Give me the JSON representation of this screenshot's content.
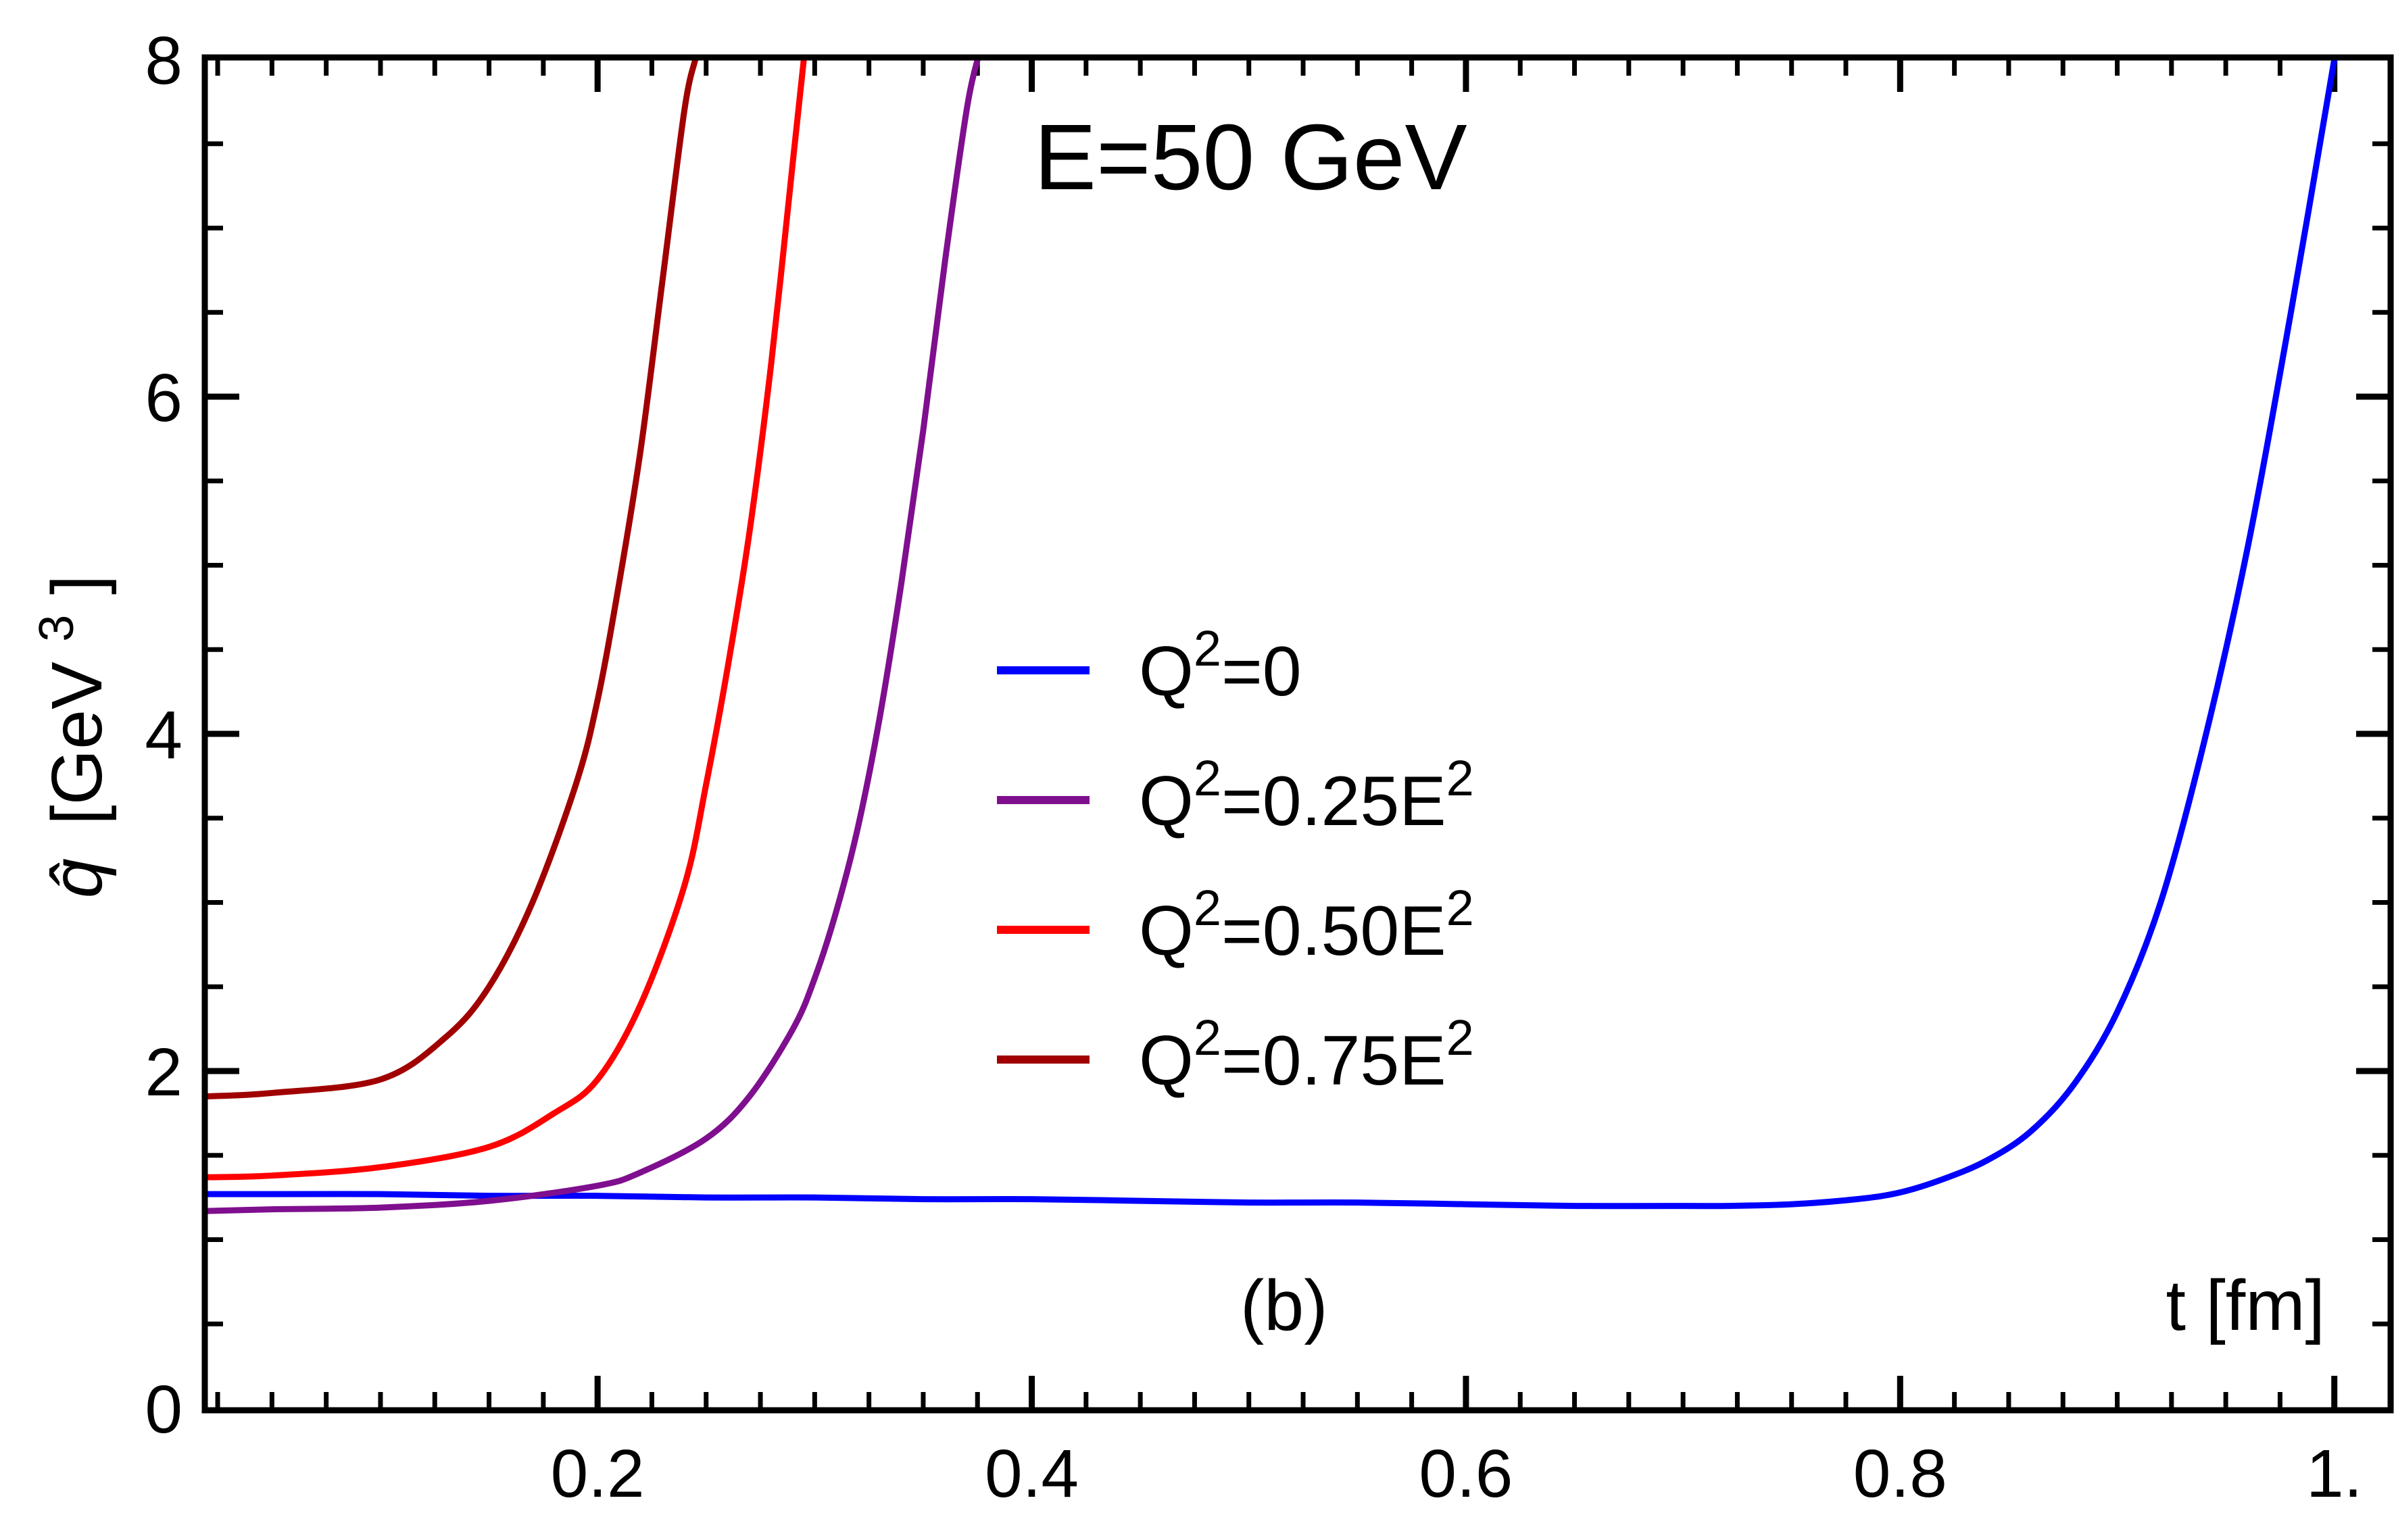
{
  "chart_data": {
    "type": "line",
    "title": "E=50 GeV",
    "panel_label": "(b)",
    "xlabel": "t [fm]",
    "ylabel": {
      "symbol": "q̂",
      "unit_open": "[GeV",
      "unit_exp": "3",
      "unit_close": "]"
    },
    "xlim": [
      0.02,
      1.025
    ],
    "ylim": [
      0,
      8
    ],
    "x_ticks": [
      {
        "value": 0.2,
        "label": "0.2"
      },
      {
        "value": 0.4,
        "label": "0.4"
      },
      {
        "value": 0.6,
        "label": "0.6"
      },
      {
        "value": 0.8,
        "label": "0.8"
      },
      {
        "value": 1.0,
        "label": "1."
      }
    ],
    "y_ticks": [
      {
        "value": 0,
        "label": "0"
      },
      {
        "value": 2,
        "label": "2"
      },
      {
        "value": 4,
        "label": "4"
      },
      {
        "value": 6,
        "label": "6"
      },
      {
        "value": 8,
        "label": "8"
      }
    ],
    "legend_position": "center",
    "grid": false,
    "series": [
      {
        "name": "Q²=0",
        "legend": {
          "base": "Q",
          "exp": "2",
          "rest": "=0",
          "rest_exp": ""
        },
        "color": "#0000ff",
        "x": [
          0.02,
          0.05,
          0.1,
          0.15,
          0.2,
          0.25,
          0.3,
          0.35,
          0.4,
          0.45,
          0.5,
          0.55,
          0.6,
          0.65,
          0.7,
          0.72,
          0.75,
          0.78,
          0.8,
          0.82,
          0.84,
          0.86,
          0.88,
          0.9,
          0.92,
          0.94,
          0.96,
          0.98,
          1.0
        ],
        "y": [
          1.27,
          1.27,
          1.27,
          1.26,
          1.26,
          1.25,
          1.25,
          1.24,
          1.24,
          1.23,
          1.22,
          1.22,
          1.21,
          1.2,
          1.2,
          1.2,
          1.21,
          1.24,
          1.28,
          1.36,
          1.47,
          1.64,
          1.92,
          2.35,
          3.0,
          3.95,
          5.1,
          6.5,
          8.0
        ]
      },
      {
        "name": "Q²=0.25E²",
        "legend": {
          "base": "Q",
          "exp": "2",
          "rest": "=0.25E",
          "rest_exp": "2"
        },
        "color": "#7f0f8f",
        "x": [
          0.02,
          0.05,
          0.1,
          0.15,
          0.2,
          0.22,
          0.25,
          0.27,
          0.29,
          0.3,
          0.31,
          0.32,
          0.33,
          0.34,
          0.35,
          0.36,
          0.37,
          0.375
        ],
        "y": [
          1.17,
          1.18,
          1.19,
          1.23,
          1.32,
          1.4,
          1.6,
          1.85,
          2.25,
          2.55,
          2.95,
          3.45,
          4.1,
          4.9,
          5.8,
          6.8,
          7.7,
          8.0
        ]
      },
      {
        "name": "Q²=0.50E²",
        "legend": {
          "base": "Q",
          "exp": "2",
          "rest": "=0.50E",
          "rest_exp": "2"
        },
        "color": "#ff0000",
        "x": [
          0.02,
          0.05,
          0.1,
          0.15,
          0.18,
          0.2,
          0.22,
          0.24,
          0.25,
          0.26,
          0.27,
          0.28,
          0.29,
          0.295
        ],
        "y": [
          1.37,
          1.38,
          1.43,
          1.55,
          1.75,
          1.95,
          2.4,
          3.1,
          3.7,
          4.4,
          5.2,
          6.2,
          7.4,
          8.0
        ]
      },
      {
        "name": "Q²=0.75E²",
        "legend": {
          "base": "Q",
          "exp": "2",
          "rest": "=0.75E",
          "rest_exp": "2"
        },
        "color": "#a00000",
        "x": [
          0.02,
          0.05,
          0.1,
          0.13,
          0.15,
          0.17,
          0.19,
          0.2,
          0.21,
          0.22,
          0.23,
          0.24,
          0.245
        ],
        "y": [
          1.85,
          1.87,
          1.95,
          2.2,
          2.5,
          3.0,
          3.7,
          4.2,
          4.9,
          5.7,
          6.7,
          7.7,
          8.0
        ]
      }
    ]
  }
}
